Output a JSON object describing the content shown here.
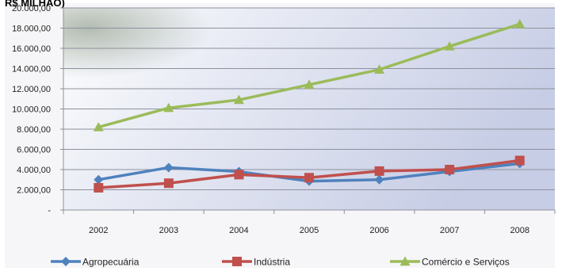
{
  "chart_data": {
    "type": "line",
    "title": "R$ MILHÃO)",
    "xlabel": "",
    "ylabel": "",
    "categories": [
      "2002",
      "2003",
      "2004",
      "2005",
      "2006",
      "2007",
      "2008"
    ],
    "ylim": [
      0,
      20000
    ],
    "yticks": [
      0,
      2000,
      4000,
      6000,
      8000,
      10000,
      12000,
      14000,
      16000,
      18000,
      20000
    ],
    "ytick_labels": [
      "-",
      "2.000,00",
      "4.000,00",
      "6.000,00",
      "8.000,00",
      "10.000,00",
      "12.000,00",
      "14.000,00",
      "16.000,00",
      "18.000,00",
      "20.000,00"
    ],
    "grid": true,
    "legend_position": "bottom",
    "series": [
      {
        "name": "Agropecuária",
        "color": "#4F81BD",
        "marker": "diamond",
        "values": [
          3000,
          4200,
          3800,
          2850,
          3000,
          3800,
          4600
        ]
      },
      {
        "name": "Indústria",
        "color": "#C0504D",
        "marker": "square",
        "values": [
          2200,
          2650,
          3500,
          3200,
          3850,
          4000,
          4900
        ]
      },
      {
        "name": "Comércio e Serviços",
        "color": "#9BBB59",
        "marker": "triangle",
        "values": [
          8200,
          10100,
          10900,
          12400,
          13900,
          16200,
          18400
        ]
      }
    ]
  }
}
